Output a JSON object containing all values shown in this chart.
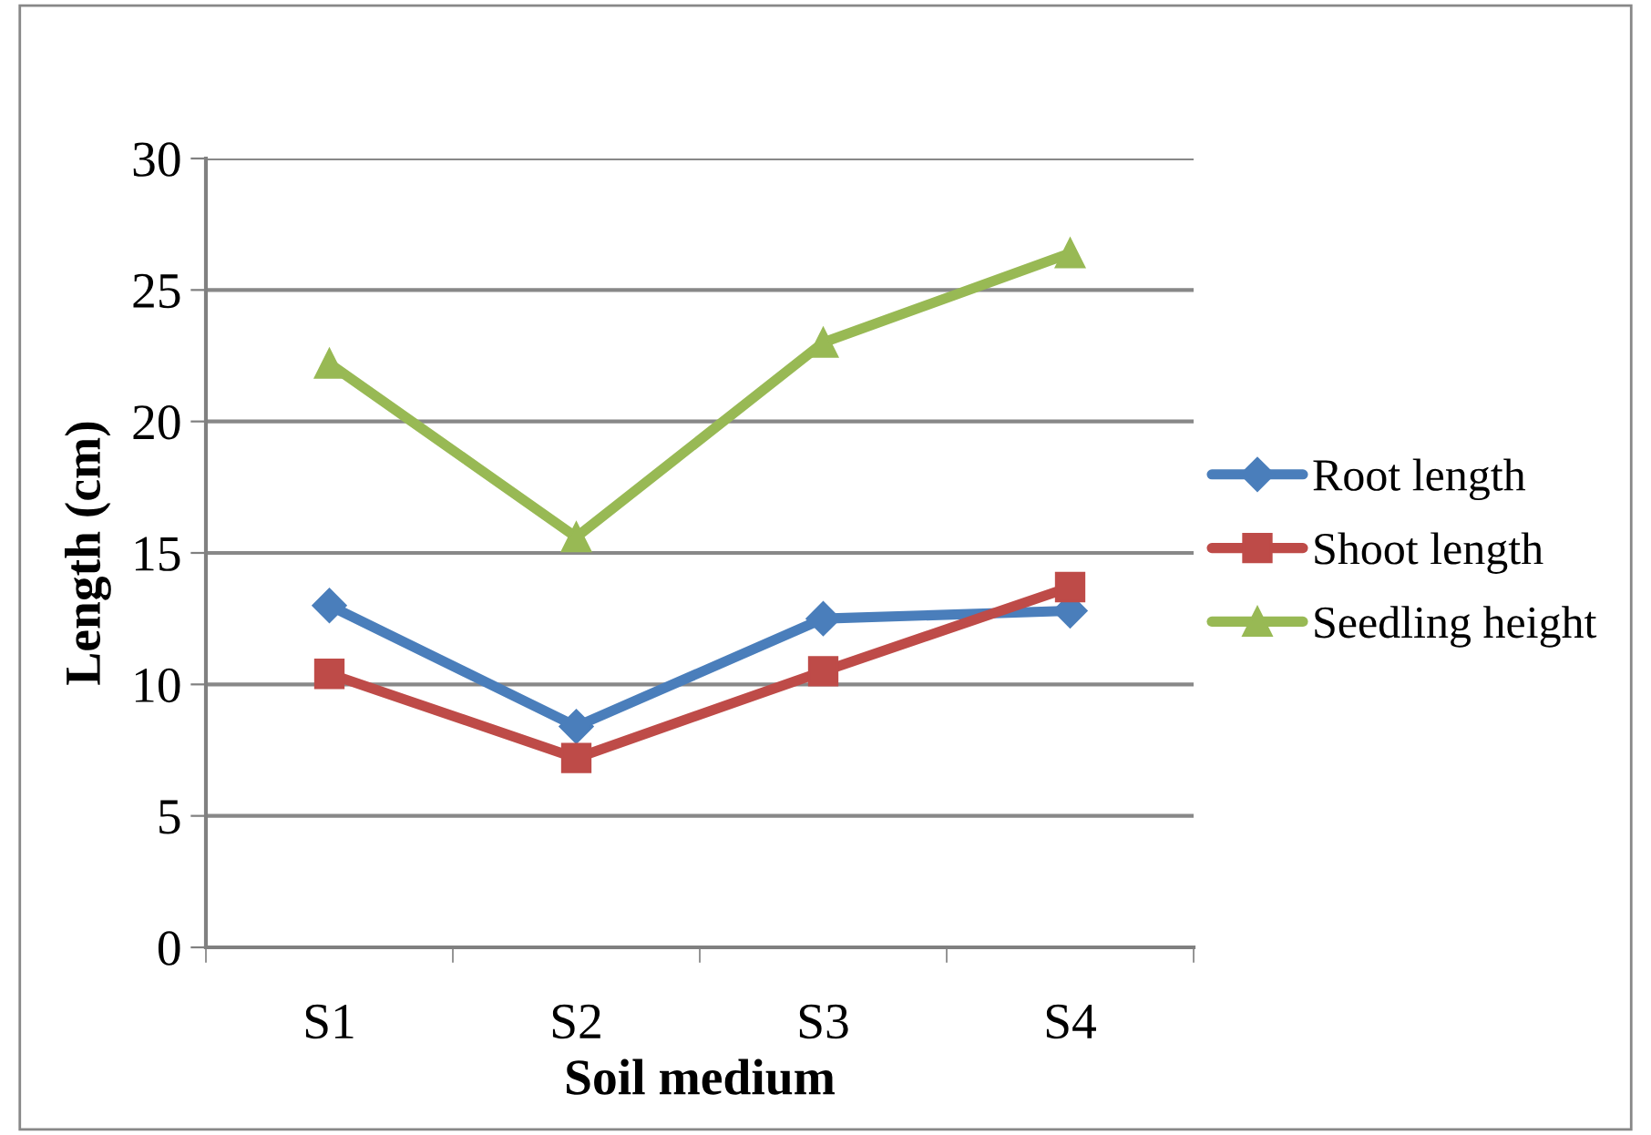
{
  "chart_data": {
    "type": "line",
    "xlabel": "Soil medium",
    "ylabel": "Length (cm)",
    "categories": [
      "S1",
      "S2",
      "S3",
      "S4"
    ],
    "series": [
      {
        "name": "Root length",
        "color": "#4a7ebb",
        "marker": "diamond",
        "values": [
          13.0,
          8.4,
          12.5,
          12.8
        ]
      },
      {
        "name": "Shoot length",
        "color": "#be4b48",
        "marker": "square",
        "values": [
          10.4,
          7.2,
          10.5,
          13.7
        ]
      },
      {
        "name": "Seedling height",
        "color": "#98b954",
        "marker": "triangle",
        "values": [
          22.2,
          15.6,
          23.0,
          26.4
        ]
      }
    ],
    "ylim": [
      0,
      30
    ],
    "yticks": [
      0,
      5,
      10,
      15,
      20,
      25,
      30
    ],
    "grid": "y",
    "legend": "right",
    "line_style": "solid"
  }
}
